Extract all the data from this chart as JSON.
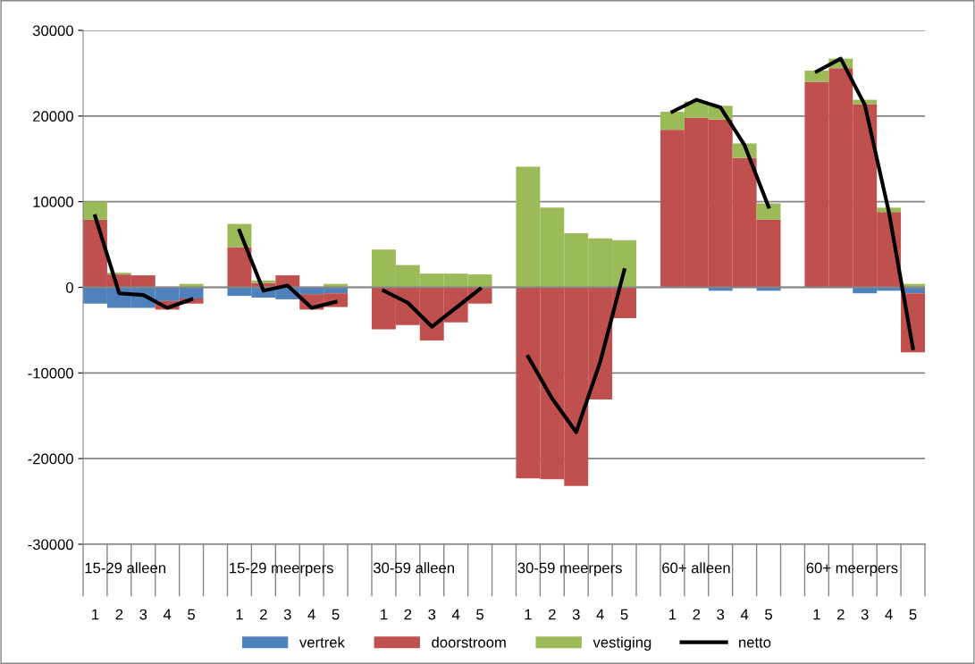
{
  "chart_data": {
    "type": "bar",
    "stacked": true,
    "categories": [
      "1",
      "2",
      "3",
      "4",
      "5",
      null,
      "1",
      "2",
      "3",
      "4",
      "5",
      null,
      "1",
      "2",
      "3",
      "4",
      "5",
      null,
      "1",
      "2",
      "3",
      "4",
      "5",
      null,
      "1",
      "2",
      "3",
      "4",
      "5",
      null,
      "1",
      "2",
      "3",
      "4",
      "5"
    ],
    "series": [
      {
        "name": "vertrek",
        "color": "#4f81bd",
        "values": [
          -1900,
          -2400,
          -2400,
          -1600,
          -1300,
          null,
          -1000,
          -1200,
          -1400,
          -800,
          -700,
          null,
          0,
          0,
          0,
          0,
          0,
          null,
          0,
          0,
          0,
          0,
          0,
          null,
          0,
          0,
          -400,
          null,
          -400,
          null,
          0,
          0,
          -700,
          -400,
          -700
        ]
      },
      {
        "name": "doorstroom",
        "color": "#c0504d",
        "values": [
          7900,
          1500,
          1400,
          -1000,
          -600,
          null,
          4700,
          500,
          1400,
          -1800,
          -1600,
          null,
          -4900,
          -4400,
          -6200,
          -4100,
          -1900,
          null,
          -22300,
          -22400,
          -23200,
          -13100,
          -3600,
          null,
          18400,
          19800,
          19600,
          15100,
          7900,
          null,
          24000,
          25600,
          21400,
          8800,
          -6900
        ]
      },
      {
        "name": "vestiging",
        "color": "#9bbb59",
        "values": [
          2100,
          200,
          0,
          null,
          400,
          null,
          2700,
          300,
          0,
          null,
          400,
          null,
          4400,
          2600,
          1600,
          1600,
          1500,
          null,
          14100,
          9300,
          6300,
          5700,
          5500,
          null,
          2100,
          1900,
          1600,
          1700,
          1900,
          null,
          1300,
          1100,
          500,
          500,
          400
        ]
      },
      {
        "name": "netto",
        "color": "#000000",
        "type": "line",
        "values": [
          8300,
          -700,
          -900,
          -2400,
          -1400,
          null,
          6600,
          -400,
          200,
          -2400,
          -1700,
          null,
          -400,
          -1800,
          -4600,
          -2400,
          -200,
          null,
          -8100,
          -13000,
          -16900,
          -8700,
          2000,
          null,
          20500,
          21900,
          21000,
          16600,
          9400,
          null,
          25200,
          26700,
          21300,
          8800,
          -7100
        ]
      }
    ],
    "ylim": [
      -30000,
      30000
    ],
    "yticks": [
      -30000,
      -20000,
      -10000,
      0,
      10000,
      20000,
      30000
    ],
    "grid": "y",
    "legend": "bottom",
    "marker": "none",
    "line_style": "solid",
    "annotations": [
      "15-29 alleen",
      "15-29 meerpers",
      "30-59 alleen",
      "30-59 meerpers",
      "60+ alleen",
      "60+ meerpers"
    ]
  }
}
